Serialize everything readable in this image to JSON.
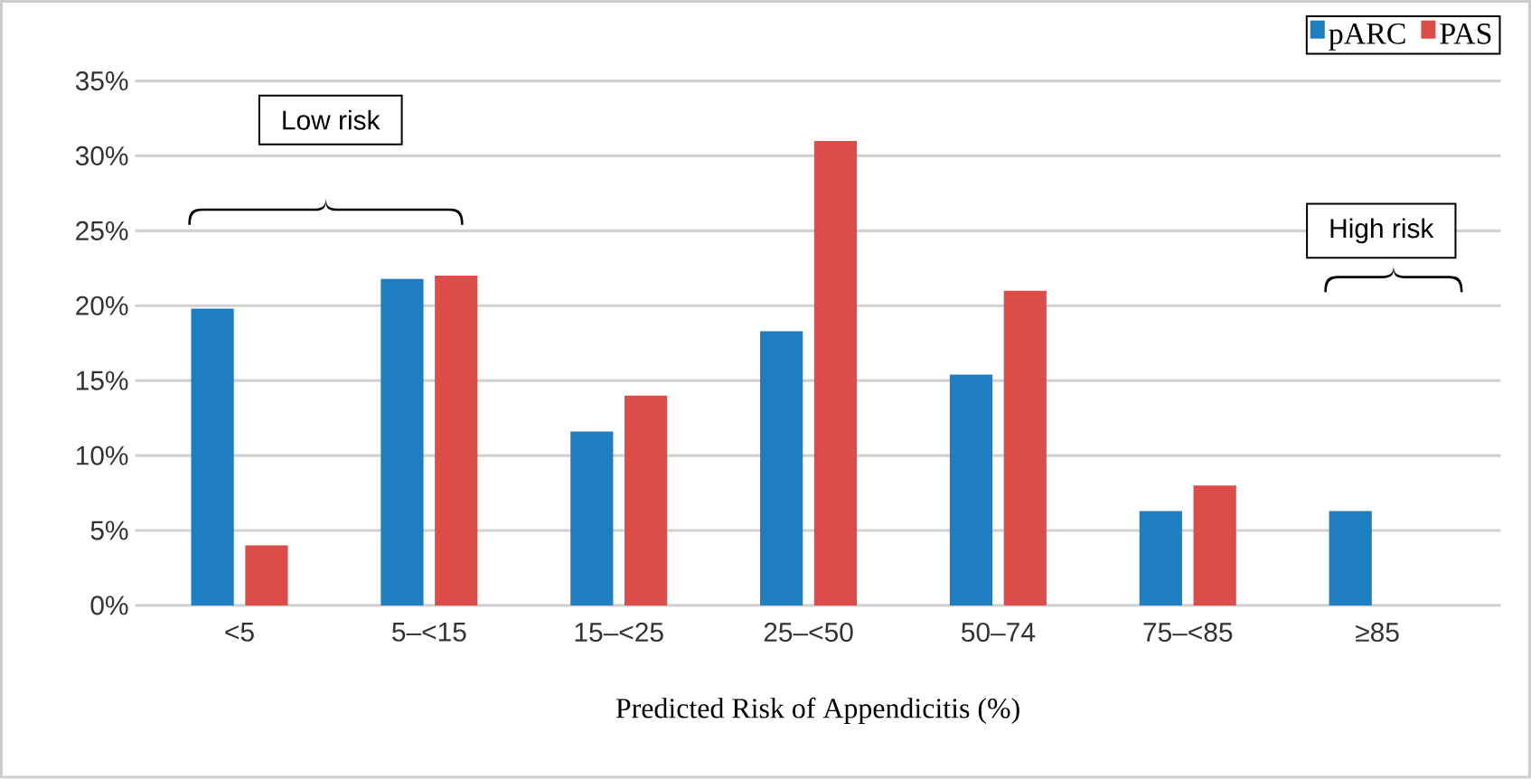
{
  "chart_data": {
    "type": "bar",
    "xlabel": "Predicted Risk of Appendicitis (%)",
    "categories": [
      "<5",
      "5–<15",
      "15–<25",
      "25–<50",
      "50–74",
      "75–<85",
      "≥85"
    ],
    "series": [
      {
        "name": "pARC",
        "color": "#1f7ec2",
        "values": [
          19.8,
          21.8,
          11.6,
          18.3,
          15.4,
          6.3,
          6.3
        ]
      },
      {
        "name": "PAS",
        "color": "#dc4d4a",
        "values": [
          4,
          22,
          14,
          31,
          21,
          8,
          null
        ]
      }
    ],
    "ylim": [
      0,
      35
    ],
    "yticks": [
      {
        "value": 0,
        "label": "0%"
      },
      {
        "value": 5,
        "label": "5%"
      },
      {
        "value": 10,
        "label": "10%"
      },
      {
        "value": 15,
        "label": "15%"
      },
      {
        "value": 20,
        "label": "20%"
      },
      {
        "value": 25,
        "label": "25%"
      },
      {
        "value": 30,
        "label": "30%"
      },
      {
        "value": 35,
        "label": "35%"
      }
    ],
    "grid": "y",
    "legend": "top right",
    "annotations": [
      "Low risk",
      "High risk"
    ]
  }
}
